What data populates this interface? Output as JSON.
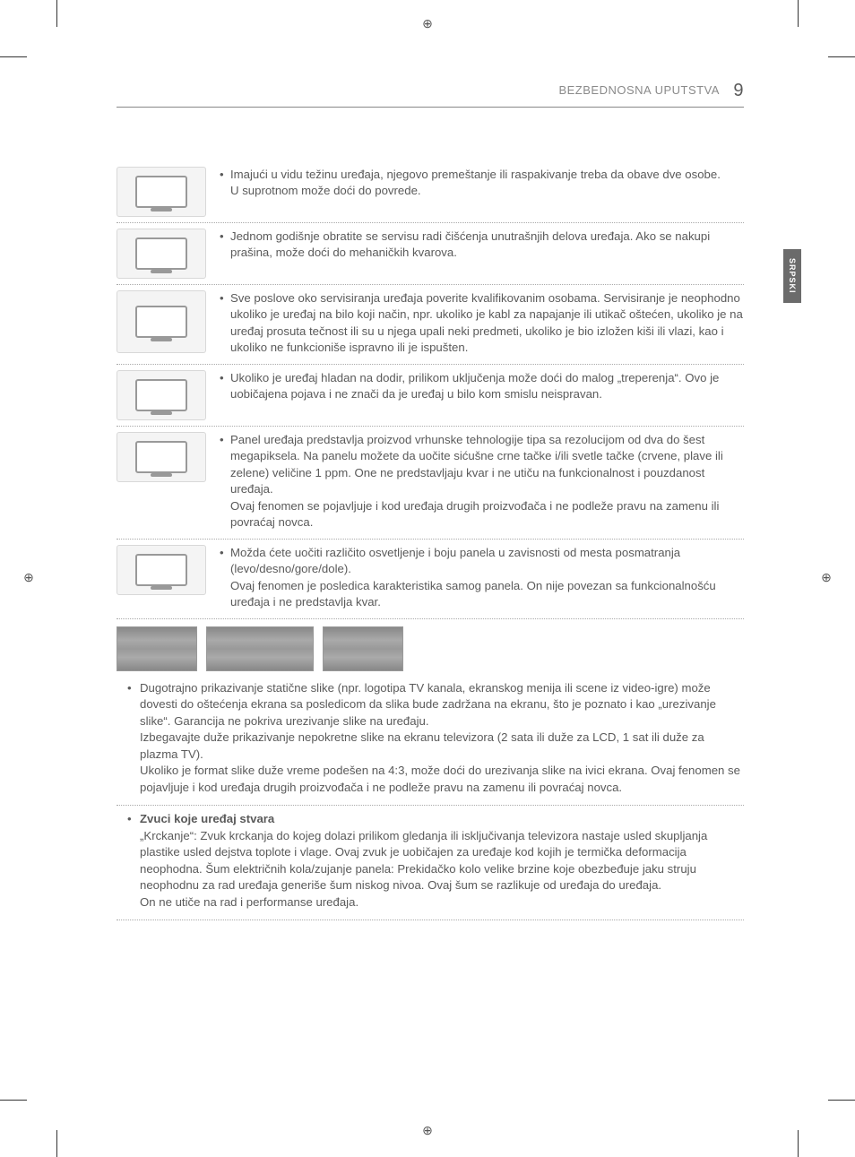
{
  "header": {
    "title": "BEZBEDNOSNA UPUTSTVA",
    "page_number": "9"
  },
  "side_tab": "SRPSKI",
  "rows": [
    {
      "text": "Imajući u vidu težinu uređaja, njegovo premeštanje ili raspakivanje treba da obave dve osobe.\nU suprotnom može doći do povrede."
    },
    {
      "text": "Jednom godišnje obratite se servisu radi čišćenja unutrašnjih delova uređaja. Ako se nakupi prašina, može doći do mehaničkih kvarova."
    },
    {
      "text": "Sve poslove oko servisiranja uređaja poverite kvalifikovanim osobama. Servisiranje je neophodno ukoliko je uređaj na bilo koji način, npr. ukoliko je kabl za napajanje ili utikač oštećen, ukoliko je na uređaj prosuta tečnost ili su u njega upali neki predmeti, ukoliko je bio izložen kiši ili vlazi, kao i ukoliko ne funkcioniše ispravno ili je ispušten."
    },
    {
      "text": "Ukoliko je uređaj hladan na dodir, prilikom uključenja može doći do malog „treperenja“. Ovo je uobičajena pojava i ne znači da je uređaj u bilo kom smislu neispravan."
    },
    {
      "text": "Panel uređaja predstavlja proizvod vrhunske tehnologije tipa sa rezolucijom od dva do šest megapiksela. Na panelu možete da uočite sićušne crne tačke i/ili svetle tačke (crvene, plave ili zelene) veličine 1 ppm. One ne predstavljaju kvar i ne utiču na funkcionalnost i pouzdanost uređaja.\nOvaj fenomen se pojavljuje i kod uređaja drugih proizvođača i ne podleže pravu na zamenu ili povraćaj novca."
    },
    {
      "text": "Možda ćete uočiti različito osvetljenje i boju panela u zavisnosti od mesta posmatranja (levo/desno/gore/dole).\nOvaj fenomen je posledica karakteristika samog panela. On nije povezan sa funkcionalnošću uređaja i ne predstavlja kvar."
    }
  ],
  "burn_in": {
    "text": "Dugotrajno prikazivanje statične slike (npr. logotipa TV kanala, ekranskog menija ili scene iz video-igre) može dovesti do oštećenja ekrana sa posledicom da slika bude zadržana na ekranu, što je poznato i kao „urezivanje slike“. Garancija ne pokriva urezivanje slike na uređaju.\nIzbegavajte duže prikazivanje nepokretne slike na ekranu televizora (2 sata ili duže za LCD, 1 sat ili duže za plazma TV).\nUkoliko je format slike duže vreme podešen na 4:3, može doći do urezivanja slike na ivici ekrana. Ovaj fenomen se pojavljuje i kod uređaja drugih proizvođača i ne podleže pravu na zamenu ili povraćaj novca."
  },
  "sounds": {
    "heading": "Zvuci koje uređaj stvara",
    "text": "„Krckanje“: Zvuk krckanja do kojeg dolazi prilikom gledanja ili isključivanja televizora nastaje usled skupljanja plastike usled dejstva toplote i vlage. Ovaj zvuk je uobičajen za uređaje kod kojih je termička deformacija neophodna. Šum električnih kola/zujanje panela: Prekidačko kolo velike brzine koje obezbeđuje jaku struju neophodnu za rad uređaja generiše šum niskog nivoa. Ovaj šum se razlikuje od uređaja do uređaja.\nOn ne utiče na rad i performanse uređaja."
  }
}
